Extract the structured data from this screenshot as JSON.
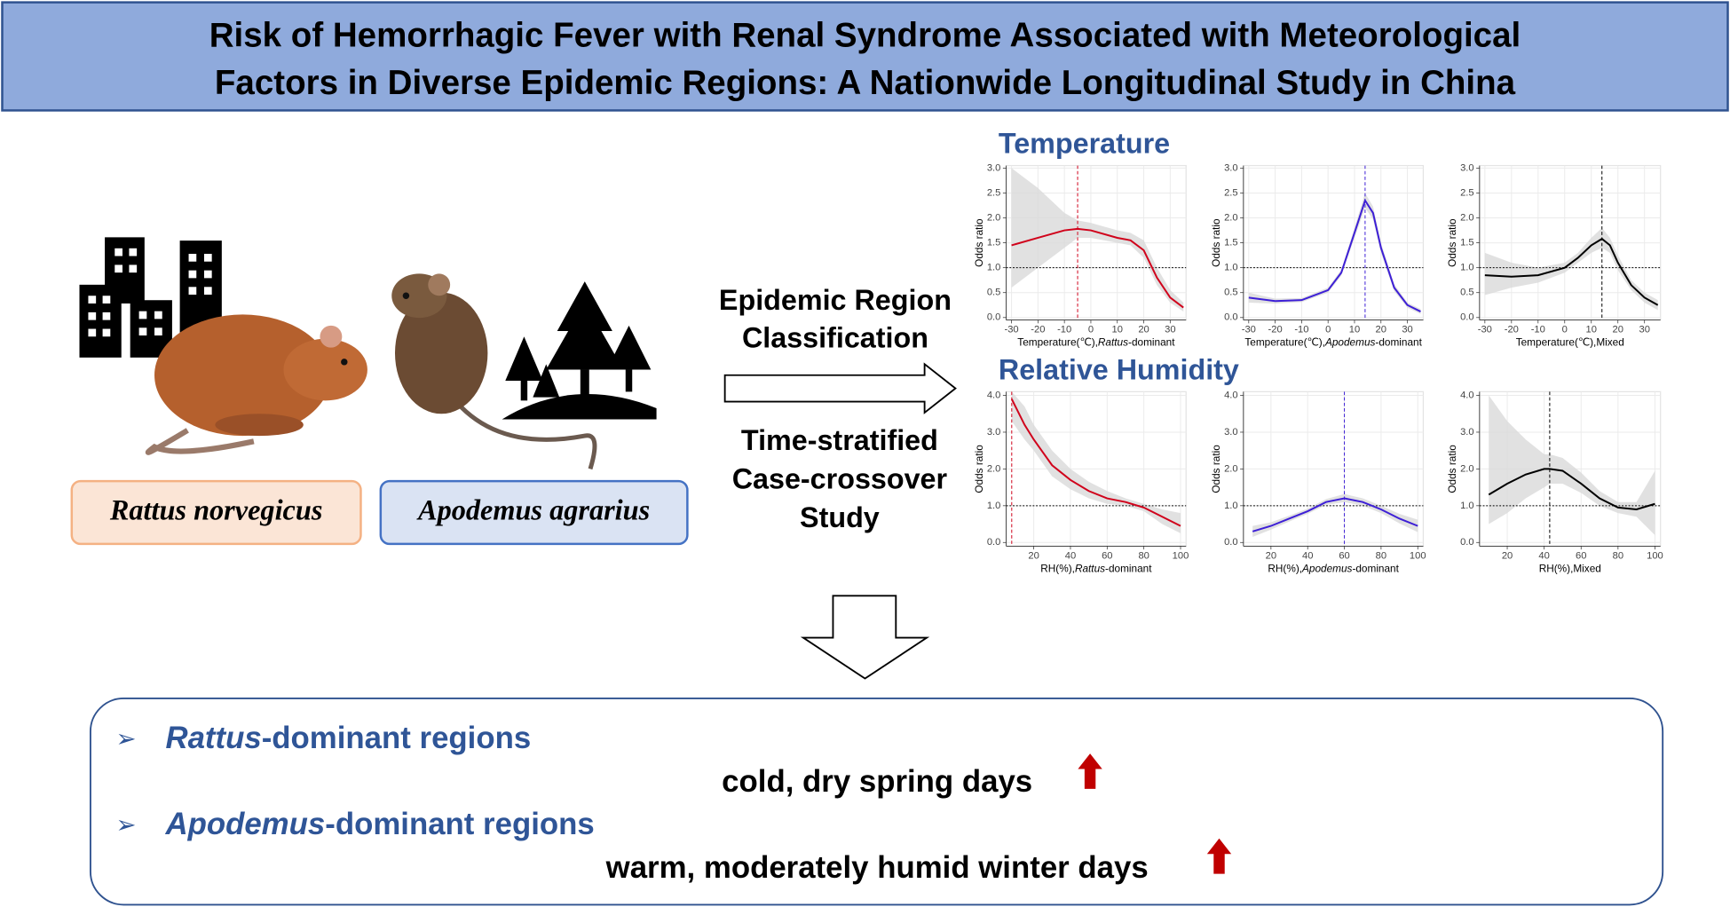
{
  "header": {
    "title_lines": [
      "Risk of Hemorrhagic Fever with Renal Syndrome Associated with Meteorological",
      "Factors in Diverse Epidemic Regions: A Nationwide Longitudinal Study in China"
    ]
  },
  "species": [
    "Rattus norvegicus",
    "Apodemus agrarius"
  ],
  "method": {
    "step1": [
      "Epidemic Region",
      "Classification"
    ],
    "step2": [
      "Time-stratified",
      "Case-crossover",
      "Study"
    ]
  },
  "section_titles": [
    "Temperature",
    "Relative Humidity"
  ],
  "chart_data": [
    {
      "type": "line",
      "y_label": "Odds ratio",
      "x_label": [
        "Temperature(℃),",
        "Rattus",
        "-dominant"
      ],
      "color": "#d0021b",
      "x": [
        -30,
        -20,
        -10,
        -5,
        0,
        10,
        15,
        20,
        25,
        30,
        35
      ],
      "values": [
        1.45,
        1.6,
        1.75,
        1.78,
        1.75,
        1.6,
        1.55,
        1.35,
        0.8,
        0.4,
        0.2
      ],
      "lower": [
        0.6,
        1.0,
        1.4,
        1.6,
        1.6,
        1.5,
        1.45,
        1.2,
        0.65,
        0.3,
        0.12
      ],
      "upper": [
        3.0,
        2.6,
        2.1,
        1.95,
        1.9,
        1.75,
        1.7,
        1.55,
        1.0,
        0.55,
        0.3
      ],
      "ref_y": 1,
      "ref_x": -5,
      "grid": true,
      "xlim": [
        -32,
        36
      ],
      "ylim": [
        -0.05,
        3.05
      ],
      "xticks": [
        -30,
        -20,
        -10,
        0,
        10,
        20,
        30
      ],
      "yticks": [
        {
          "value": 0,
          "label": "0.0"
        },
        0.5,
        {
          "value": 1,
          "label": "1.0"
        },
        1.5,
        {
          "value": 2,
          "label": "2.0"
        },
        2.5,
        {
          "value": 3,
          "label": "3.0"
        }
      ]
    },
    {
      "type": "line",
      "y_label": "Odds ratio",
      "x_label": [
        "Temperature(℃),",
        "Apodemus",
        "-dominant"
      ],
      "color": "#3d1fd6",
      "x": [
        -30,
        -20,
        -10,
        0,
        5,
        10,
        14,
        17,
        20,
        25,
        30,
        35
      ],
      "values": [
        0.4,
        0.33,
        0.35,
        0.55,
        0.9,
        1.7,
        2.35,
        2.1,
        1.4,
        0.6,
        0.25,
        0.12
      ],
      "lower": [
        0.3,
        0.28,
        0.31,
        0.5,
        0.84,
        1.6,
        2.2,
        1.97,
        1.3,
        0.53,
        0.2,
        0.07
      ],
      "upper": [
        0.5,
        0.38,
        0.39,
        0.6,
        0.96,
        1.8,
        2.5,
        2.23,
        1.5,
        0.67,
        0.3,
        0.17
      ],
      "ref_y": 1,
      "ref_x": 14,
      "grid": true,
      "xlim": [
        -32,
        36
      ],
      "ylim": [
        -0.05,
        3.05
      ],
      "xticks": [
        -30,
        -20,
        -10,
        0,
        10,
        20,
        30
      ],
      "yticks": [
        {
          "value": 0,
          "label": "0.0"
        },
        0.5,
        {
          "value": 1,
          "label": "1.0"
        },
        1.5,
        {
          "value": 2,
          "label": "2.0"
        },
        2.5,
        {
          "value": 3,
          "label": "3.0"
        }
      ]
    },
    {
      "type": "line",
      "y_label": "Odds ratio",
      "x_label": [
        "Temperature(℃),Mixed"
      ],
      "color": "#000000",
      "x": [
        -30,
        -20,
        -10,
        0,
        5,
        10,
        14,
        17,
        20,
        25,
        30,
        35
      ],
      "values": [
        0.85,
        0.82,
        0.85,
        1.0,
        1.2,
        1.45,
        1.58,
        1.45,
        1.1,
        0.65,
        0.4,
        0.25
      ],
      "lower": [
        0.45,
        0.6,
        0.7,
        0.9,
        1.1,
        1.3,
        1.4,
        1.3,
        0.95,
        0.55,
        0.3,
        0.15
      ],
      "upper": [
        1.3,
        1.1,
        1.0,
        1.1,
        1.3,
        1.6,
        1.8,
        1.6,
        1.25,
        0.75,
        0.5,
        0.35
      ],
      "ref_y": 1,
      "ref_x": 14,
      "grid": true,
      "xlim": [
        -32,
        36
      ],
      "ylim": [
        -0.05,
        3.05
      ],
      "xticks": [
        -30,
        -20,
        -10,
        0,
        10,
        20,
        30
      ],
      "yticks": [
        {
          "value": 0,
          "label": "0.0"
        },
        0.5,
        {
          "value": 1,
          "label": "1.0"
        },
        1.5,
        {
          "value": 2,
          "label": "2.0"
        },
        2.5,
        {
          "value": 3,
          "label": "3.0"
        }
      ]
    },
    {
      "type": "line",
      "y_label": "Odds ratio",
      "x_label": [
        "RH(%),",
        "Rattus",
        "-dominant"
      ],
      "color": "#d0021b",
      "x": [
        8,
        15,
        20,
        30,
        40,
        50,
        60,
        70,
        80,
        90,
        100
      ],
      "values": [
        3.9,
        3.2,
        2.8,
        2.1,
        1.7,
        1.4,
        1.2,
        1.1,
        0.95,
        0.7,
        0.45
      ],
      "lower": [
        3.3,
        2.8,
        2.5,
        1.8,
        1.45,
        1.2,
        1.05,
        1.0,
        0.85,
        0.5,
        0.25
      ],
      "upper": [
        4.1,
        3.7,
        3.2,
        2.5,
        2.0,
        1.65,
        1.4,
        1.2,
        1.05,
        0.9,
        0.8
      ],
      "ref_y": 1,
      "ref_x": 8,
      "grid": true,
      "xlim": [
        5,
        103
      ],
      "ylim": [
        -0.1,
        4.1
      ],
      "xticks": [
        20,
        40,
        60,
        80,
        100
      ],
      "yticks": [
        {
          "value": 0,
          "label": "0.0"
        },
        {
          "value": 1,
          "label": "1.0"
        },
        {
          "value": 2,
          "label": "2.0"
        },
        {
          "value": 3,
          "label": "3.0"
        },
        {
          "value": 4,
          "label": "4.0"
        }
      ]
    },
    {
      "type": "line",
      "y_label": "Odds ratio",
      "x_label": [
        "RH(%),",
        "Apodemus",
        "-dominant"
      ],
      "color": "#3d1fd6",
      "x": [
        10,
        20,
        30,
        40,
        50,
        60,
        70,
        80,
        90,
        100
      ],
      "values": [
        0.3,
        0.45,
        0.65,
        0.85,
        1.1,
        1.2,
        1.1,
        0.9,
        0.65,
        0.45
      ],
      "lower": [
        0.15,
        0.35,
        0.57,
        0.78,
        1.02,
        1.1,
        1.0,
        0.8,
        0.52,
        0.28
      ],
      "upper": [
        0.45,
        0.55,
        0.73,
        0.92,
        1.18,
        1.32,
        1.2,
        1.0,
        0.78,
        0.62
      ],
      "ref_y": 1,
      "ref_x": 60,
      "grid": true,
      "xlim": [
        5,
        103
      ],
      "ylim": [
        -0.1,
        4.1
      ],
      "xticks": [
        20,
        40,
        60,
        80,
        100
      ],
      "yticks": [
        {
          "value": 0,
          "label": "0.0"
        },
        {
          "value": 1,
          "label": "1.0"
        },
        {
          "value": 2,
          "label": "2.0"
        },
        {
          "value": 3,
          "label": "3.0"
        },
        {
          "value": 4,
          "label": "4.0"
        }
      ]
    },
    {
      "type": "line",
      "y_label": "Odds ratio",
      "x_label": [
        "RH(%),Mixed"
      ],
      "color": "#000000",
      "x": [
        10,
        20,
        30,
        40,
        43,
        50,
        60,
        70,
        80,
        90,
        100
      ],
      "values": [
        1.3,
        1.6,
        1.85,
        2.0,
        2.0,
        1.95,
        1.6,
        1.2,
        0.95,
        0.9,
        1.05
      ],
      "lower": [
        0.5,
        0.8,
        1.2,
        1.5,
        1.6,
        1.6,
        1.35,
        1.0,
        0.8,
        0.7,
        0.2
      ],
      "upper": [
        4.0,
        3.3,
        2.8,
        2.4,
        2.4,
        2.3,
        1.9,
        1.4,
        1.1,
        1.1,
        1.95
      ],
      "ref_y": 1,
      "ref_x": 43,
      "grid": true,
      "xlim": [
        5,
        103
      ],
      "ylim": [
        -0.1,
        4.1
      ],
      "xticks": [
        20,
        40,
        60,
        80,
        100
      ],
      "yticks": [
        {
          "value": 0,
          "label": "0.0"
        },
        {
          "value": 1,
          "label": "1.0"
        },
        {
          "value": 2,
          "label": "2.0"
        },
        {
          "value": 3,
          "label": "3.0"
        },
        {
          "value": 4,
          "label": "4.0"
        }
      ]
    }
  ],
  "summary": {
    "bullet": "➢",
    "items": [
      {
        "heading": [
          "Rattus",
          "-dominant regions"
        ],
        "finding": "cold, dry spring days"
      },
      {
        "heading": [
          "Apodemus",
          "-dominant regions"
        ],
        "finding": "warm, moderately humid winter days"
      }
    ]
  }
}
